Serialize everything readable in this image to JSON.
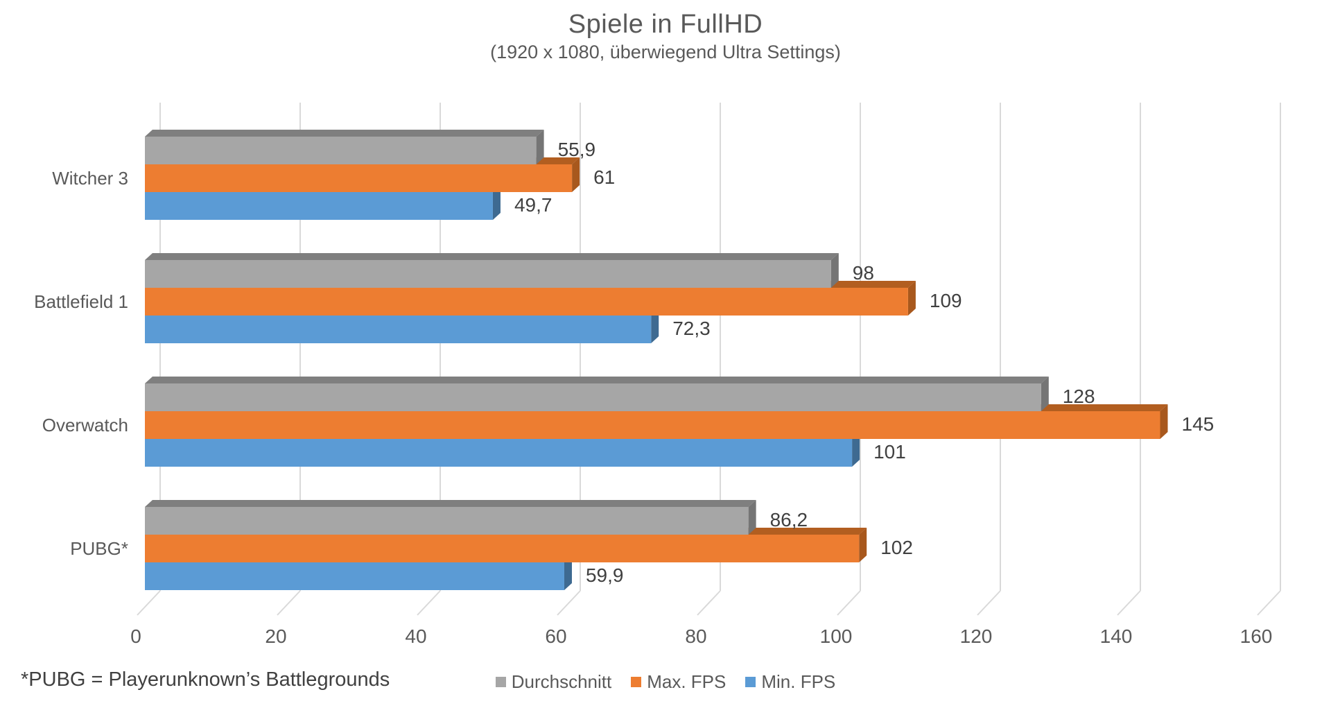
{
  "chart_data": {
    "type": "bar",
    "orientation": "horizontal",
    "effect": "3d",
    "title": "Spiele in FullHD",
    "subtitle": "(1920 x 1080, überwiegend Ultra Settings)",
    "categories": [
      "Witcher 3",
      "Battlefield 1",
      "Overwatch",
      "PUBG*"
    ],
    "series": [
      {
        "name": "Durchschnitt",
        "values": [
          55.9,
          98,
          128,
          86.2
        ],
        "value_labels": [
          "55,9",
          "98",
          "128",
          "86,2"
        ],
        "colors": {
          "front": "#a6a6a6",
          "top": "#7f7f7f",
          "side": "#757575"
        }
      },
      {
        "name": "Max. FPS",
        "values": [
          61,
          109,
          145,
          102
        ],
        "value_labels": [
          "61",
          "109",
          "145",
          "102"
        ],
        "colors": {
          "front": "#ed7d31",
          "top": "#b25e20",
          "side": "#a8581d"
        }
      },
      {
        "name": "Min. FPS",
        "values": [
          49.7,
          72.3,
          101,
          59.9
        ],
        "value_labels": [
          "49,7",
          "72,3",
          "101",
          "59,9"
        ],
        "colors": {
          "front": "#5b9bd5",
          "top": "#44749f",
          "side": "#3e6a91"
        }
      }
    ],
    "x_axis": {
      "min": 0,
      "max": 160,
      "tick_step": 20,
      "tick_labels": [
        "0",
        "20",
        "40",
        "60",
        "80",
        "100",
        "120",
        "140",
        "160"
      ]
    },
    "legend": {
      "position": "bottom"
    },
    "grid": true,
    "footnote": "*PUBG = Playerunknown’s Battlegrounds"
  },
  "colors": {
    "background": "#ffffff",
    "grid": "#d9d9d9",
    "title_text": "#595959",
    "axis_text": "#595959",
    "value_text": "#404040",
    "footnote_text": "#404040"
  }
}
